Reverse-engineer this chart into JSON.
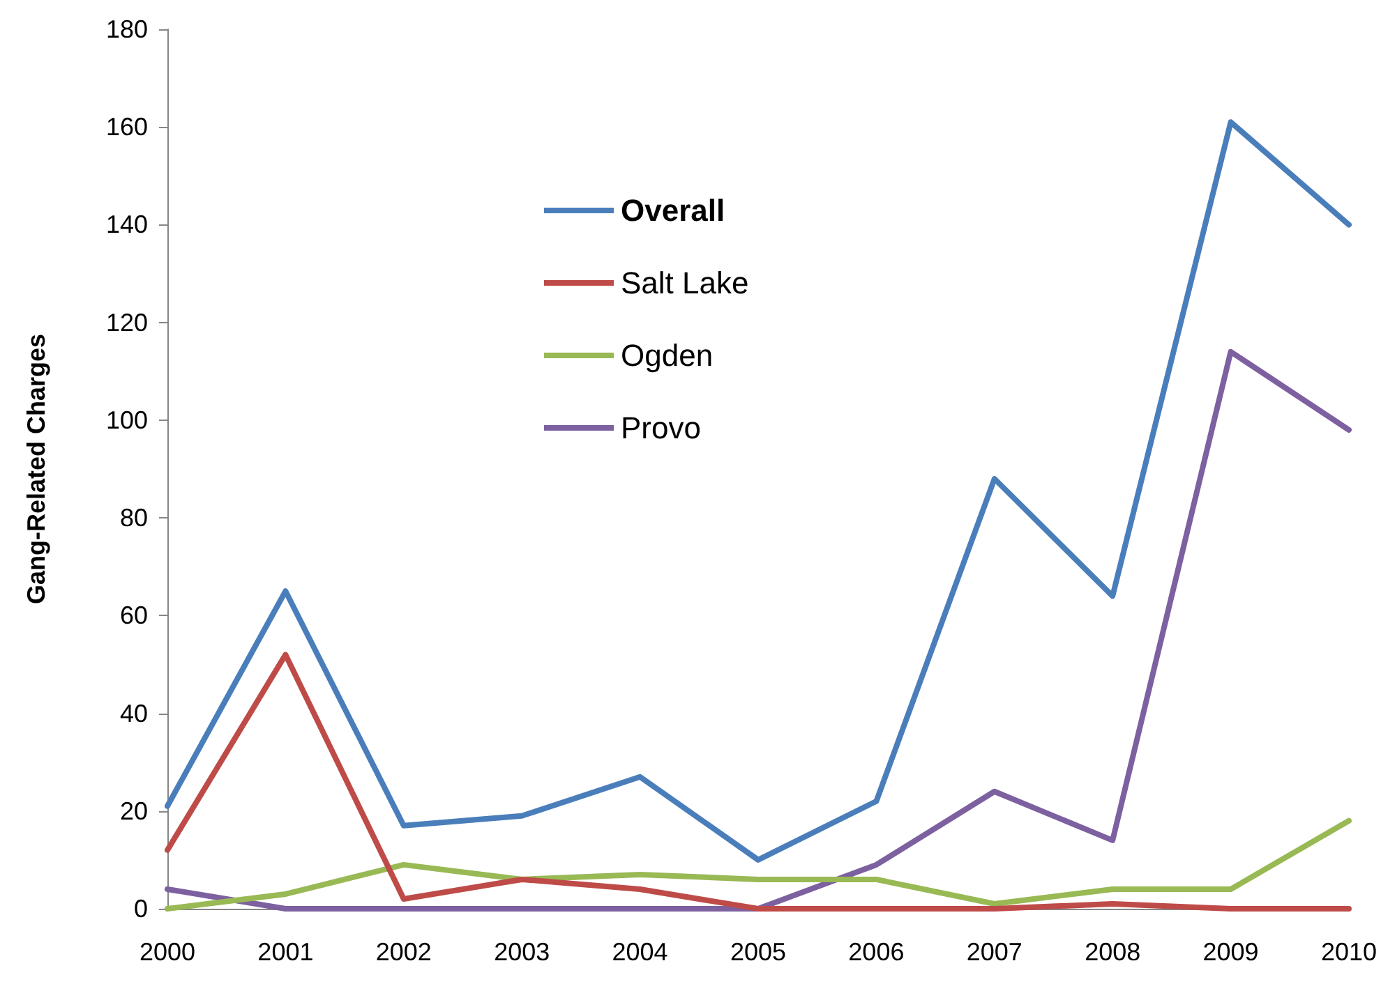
{
  "chart_data": {
    "type": "line",
    "ylabel": "Gang-Related Charges",
    "categories": [
      "2000",
      "2001",
      "2002",
      "2003",
      "2004",
      "2005",
      "2006",
      "2007",
      "2008",
      "2009",
      "2010"
    ],
    "series": [
      {
        "name": "Overall",
        "color": "#4a7ebb",
        "values": [
          21,
          65,
          17,
          19,
          27,
          10,
          22,
          88,
          64,
          161,
          140
        ]
      },
      {
        "name": "Salt Lake",
        "color": "#be4b48",
        "values": [
          12,
          52,
          2,
          6,
          4,
          0,
          0,
          0,
          1,
          0,
          0
        ]
      },
      {
        "name": "Ogden",
        "color": "#98b954",
        "values": [
          0,
          3,
          9,
          6,
          7,
          6,
          6,
          1,
          4,
          4,
          18
        ]
      },
      {
        "name": "Provo",
        "color": "#7d60a0",
        "values": [
          4,
          0,
          0,
          0,
          0,
          0,
          9,
          24,
          14,
          114,
          98
        ]
      }
    ],
    "ylim": [
      0,
      180
    ],
    "yticks": [
      0,
      20,
      40,
      60,
      80,
      100,
      120,
      140,
      160,
      180
    ],
    "grid": false,
    "legend": "top",
    "marker": "none",
    "line_style": "solid"
  }
}
